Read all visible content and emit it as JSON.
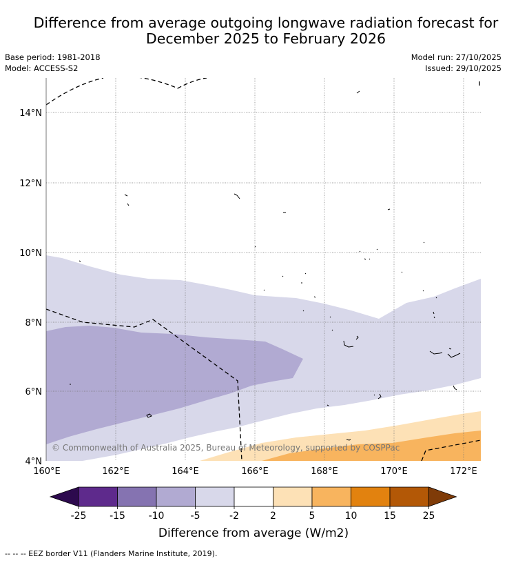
{
  "title": {
    "line1": "Difference from average outgoing longwave radiation forecast for",
    "line2": "December 2025 to February 2026"
  },
  "meta_left": {
    "base_period": "Base period: 1981-2018",
    "model": "Model: ACCESS-S2"
  },
  "meta_right": {
    "model_run": "Model run: 27/10/2025",
    "issued": "Issued: 29/10/2025"
  },
  "map": {
    "lon_labels": [
      "160°E",
      "162°E",
      "164°E",
      "166°E",
      "168°E",
      "170°E",
      "172°E"
    ],
    "lat_labels": [
      "14°N",
      "12°N",
      "10°N",
      "8°N",
      "6°N",
      "4°N"
    ],
    "copyright": "© Commonwealth of Australia 2025, Bureau of Meteorology, supported by COSPPac"
  },
  "colorbar": {
    "label": "Difference from average (W/m2)",
    "ticks": [
      "-25",
      "-15",
      "-10",
      "-5",
      "-2",
      "2",
      "5",
      "10",
      "15",
      "25"
    ],
    "colors": {
      "under": "#2d0a4e",
      "bins": [
        "#5e2a8c",
        "#8573b1",
        "#b1aad2",
        "#d8d8ea",
        "#ffffff",
        "#fde1b6",
        "#f8b45e",
        "#e2820f",
        "#b35806"
      ],
      "over": "#7f3b08"
    }
  },
  "footer": {
    "eez_note": "--  --  -- EEZ border V11 (Flanders Marine Institute, 2019)."
  }
}
